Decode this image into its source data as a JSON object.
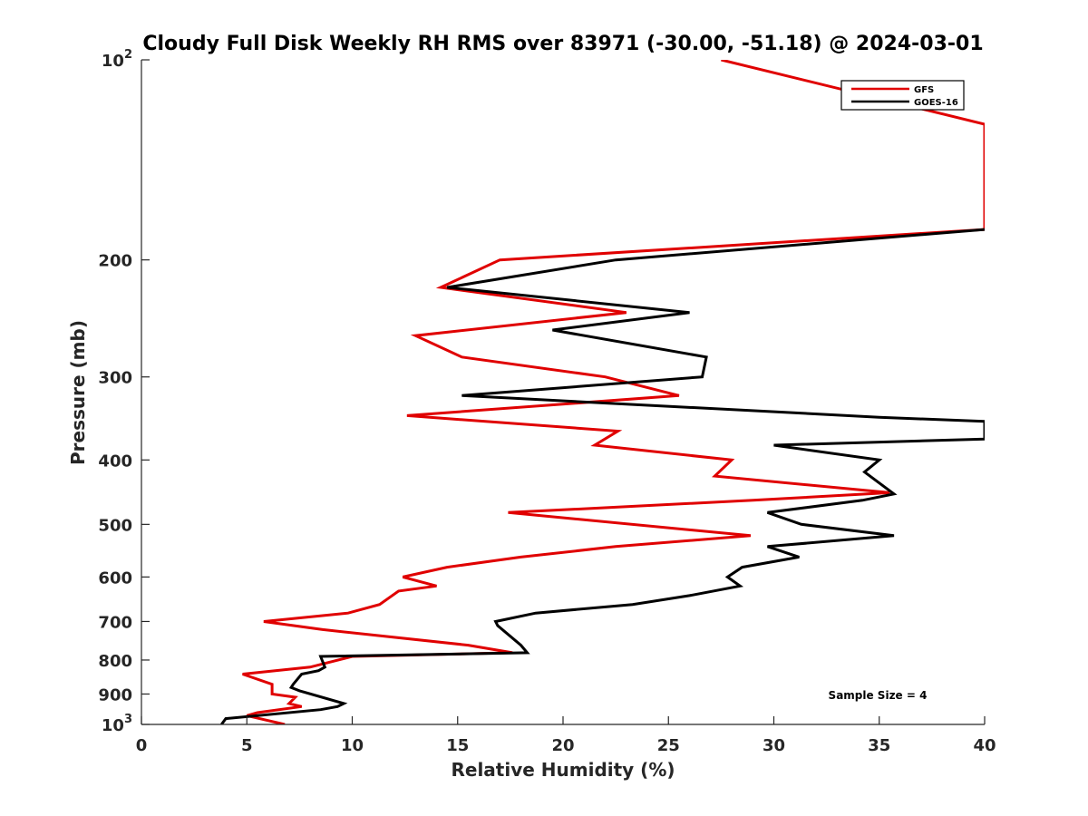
{
  "chart_data": {
    "type": "line",
    "title": "Cloudy Full Disk Weekly RH RMS over 83971 (-30.00, -51.18) @ 2024-03-01",
    "xlabel": "Relative Humidity (%)",
    "ylabel": "Pressure (mb)",
    "xlim": [
      0,
      40
    ],
    "ylim": [
      100,
      1000
    ],
    "y_scale": "log",
    "y_reversed": true,
    "grid": false,
    "legend_placement": "top-right",
    "x_ticks": [
      {
        "value": 0,
        "label": "0"
      },
      {
        "value": 5,
        "label": "5"
      },
      {
        "value": 10,
        "label": "10"
      },
      {
        "value": 15,
        "label": "15"
      },
      {
        "value": 20,
        "label": "20"
      },
      {
        "value": 25,
        "label": "25"
      },
      {
        "value": 30,
        "label": "30"
      },
      {
        "value": 35,
        "label": "35"
      },
      {
        "value": 40,
        "label": "40"
      }
    ],
    "y_ticks": [
      {
        "value": 100,
        "base": "10",
        "exp": "2"
      },
      {
        "value": 200,
        "base": "200",
        "exp": ""
      },
      {
        "value": 300,
        "base": "300",
        "exp": ""
      },
      {
        "value": 400,
        "base": "400",
        "exp": ""
      },
      {
        "value": 500,
        "base": "500",
        "exp": ""
      },
      {
        "value": 600,
        "base": "600",
        "exp": ""
      },
      {
        "value": 700,
        "base": "700",
        "exp": ""
      },
      {
        "value": 800,
        "base": "800",
        "exp": ""
      },
      {
        "value": 900,
        "base": "900",
        "exp": ""
      },
      {
        "value": 1000,
        "base": "10",
        "exp": "3"
      }
    ],
    "series": [
      {
        "name": "GFS",
        "color": "#e00000",
        "points": [
          [
            27.5,
            100
          ],
          [
            40.0,
            125
          ],
          [
            40.0,
            180
          ],
          [
            17.0,
            200
          ],
          [
            14.2,
            220
          ],
          [
            23.0,
            240
          ],
          [
            13.0,
            260
          ],
          [
            15.2,
            280
          ],
          [
            22.0,
            300
          ],
          [
            25.5,
            320
          ],
          [
            12.6,
            343
          ],
          [
            22.6,
            362
          ],
          [
            21.5,
            380
          ],
          [
            28.0,
            400
          ],
          [
            27.2,
            423
          ],
          [
            35.5,
            448
          ],
          [
            29.0,
            460
          ],
          [
            17.4,
            480
          ],
          [
            28.9,
            520
          ],
          [
            22.5,
            540
          ],
          [
            18.0,
            560
          ],
          [
            14.5,
            580
          ],
          [
            12.4,
            600
          ],
          [
            14.0,
            619
          ],
          [
            12.2,
            630
          ],
          [
            11.3,
            660
          ],
          [
            9.8,
            680
          ],
          [
            5.8,
            700
          ],
          [
            8.6,
            720
          ],
          [
            15.5,
            760
          ],
          [
            17.6,
            780
          ],
          [
            10.0,
            790
          ],
          [
            8.0,
            820
          ],
          [
            4.8,
            840
          ],
          [
            6.2,
            870
          ],
          [
            6.2,
            900
          ],
          [
            7.3,
            910
          ],
          [
            7.0,
            930
          ],
          [
            7.6,
            940
          ],
          [
            5.5,
            960
          ],
          [
            5.0,
            970
          ],
          [
            6.8,
            1000
          ]
        ]
      },
      {
        "name": "GOES-16",
        "color": "#000000",
        "points": [
          [
            40.0,
            180
          ],
          [
            22.5,
            200
          ],
          [
            14.5,
            220
          ],
          [
            26.0,
            240
          ],
          [
            19.5,
            255
          ],
          [
            26.8,
            280
          ],
          [
            26.6,
            300
          ],
          [
            15.2,
            320
          ],
          [
            35.0,
            345
          ],
          [
            40.0,
            350
          ],
          [
            40.0,
            372
          ],
          [
            30.0,
            380
          ],
          [
            35.0,
            400
          ],
          [
            34.3,
            417
          ],
          [
            35.7,
            450
          ],
          [
            34.2,
            460
          ],
          [
            29.7,
            480
          ],
          [
            31.3,
            500
          ],
          [
            35.7,
            520
          ],
          [
            29.7,
            540
          ],
          [
            31.2,
            560
          ],
          [
            28.5,
            580
          ],
          [
            27.8,
            600
          ],
          [
            28.4,
            619
          ],
          [
            26.0,
            640
          ],
          [
            23.3,
            660
          ],
          [
            18.7,
            680
          ],
          [
            16.8,
            700
          ],
          [
            16.9,
            710
          ],
          [
            18.0,
            760
          ],
          [
            18.3,
            780
          ],
          [
            8.5,
            790
          ],
          [
            8.7,
            820
          ],
          [
            8.4,
            830
          ],
          [
            7.6,
            840
          ],
          [
            7.2,
            870
          ],
          [
            7.1,
            880
          ],
          [
            7.5,
            890
          ],
          [
            9.6,
            930
          ],
          [
            9.3,
            940
          ],
          [
            8.5,
            950
          ],
          [
            4.0,
            980
          ],
          [
            3.8,
            1000
          ]
        ]
      }
    ],
    "legend": [
      {
        "label": "GFS",
        "color": "#e00000"
      },
      {
        "label": "GOES-16",
        "color": "#000000"
      }
    ],
    "annotation": "Sample Size = 4"
  }
}
